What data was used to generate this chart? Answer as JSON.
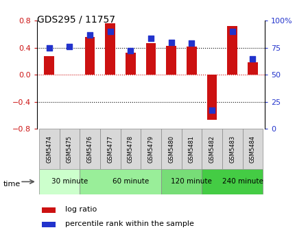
{
  "title": "GDS295 / 11757",
  "samples": [
    "GSM5474",
    "GSM5475",
    "GSM5476",
    "GSM5477",
    "GSM5478",
    "GSM5479",
    "GSM5480",
    "GSM5481",
    "GSM5482",
    "GSM5483",
    "GSM5484"
  ],
  "log_ratio": [
    0.28,
    0.0,
    0.56,
    0.76,
    0.33,
    0.47,
    0.43,
    0.42,
    -0.67,
    0.72,
    0.18
  ],
  "percentile": [
    75,
    76,
    87,
    90,
    72,
    84,
    80,
    79,
    17,
    90,
    65
  ],
  "groups": [
    {
      "label": "30 minute",
      "start": 0,
      "end": 2,
      "color": "#ccffcc"
    },
    {
      "label": "60 minute",
      "start": 2,
      "end": 6,
      "color": "#99ee99"
    },
    {
      "label": "120 minute",
      "start": 6,
      "end": 8,
      "color": "#77dd77"
    },
    {
      "label": "240 minute",
      "start": 8,
      "end": 11,
      "color": "#44cc44"
    }
  ],
  "bar_color": "#cc1111",
  "dot_color": "#2233cc",
  "ylim_left": [
    -0.8,
    0.8
  ],
  "ylim_right": [
    0,
    100
  ],
  "yticks_left": [
    -0.8,
    -0.4,
    0.0,
    0.4,
    0.8
  ],
  "yticks_right": [
    0,
    25,
    50,
    75,
    100
  ],
  "hlines": [
    -0.4,
    0.0,
    0.4
  ],
  "hline_colors": [
    "black",
    "#cc0000",
    "black"
  ],
  "hline_styles": [
    "dotted",
    "dotted",
    "dotted"
  ],
  "bg_color": "#ffffff",
  "bar_width": 0.5,
  "dot_size": 35,
  "legend_log_ratio": "log ratio",
  "legend_percentile": "percentile rank within the sample"
}
